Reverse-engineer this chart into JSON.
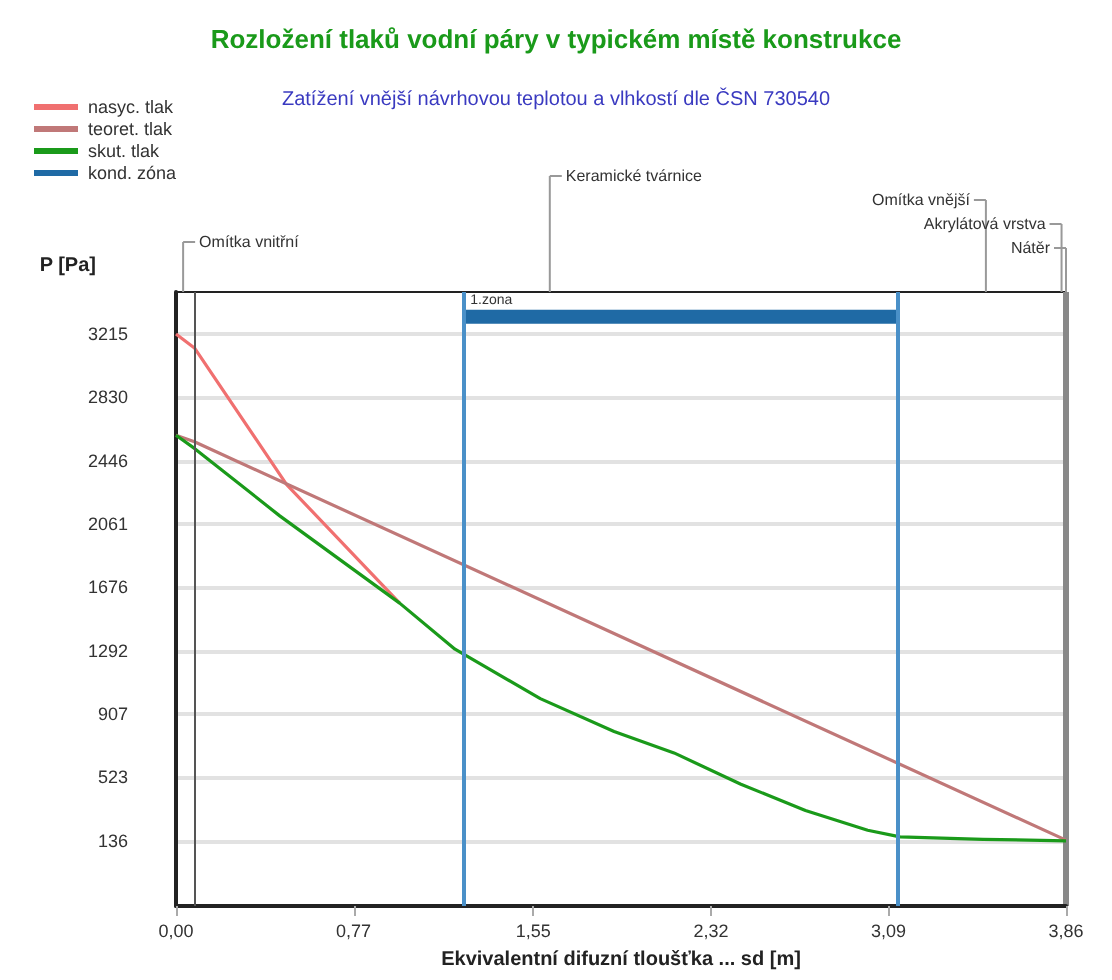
{
  "chart_data": {
    "type": "line",
    "title": "Rozložení tlaků vodní páry v typickém místě konstrukce",
    "subtitle": "Zatížení vnější návrhovou teplotou a vlhkostí dle ČSN 730540",
    "xlabel": "Ekvivalentní difuzní tloušťka ... sd [m]",
    "ylabel": "P [Pa]",
    "xlim": [
      0,
      3.86
    ],
    "xticks": [
      {
        "value": 0,
        "label": "0,00"
      },
      {
        "value": 0.77,
        "label": "0,77"
      },
      {
        "value": 1.55,
        "label": "1,55"
      },
      {
        "value": 2.32,
        "label": "2,32"
      },
      {
        "value": 3.09,
        "label": "3,09"
      },
      {
        "value": 3.86,
        "label": "3,86"
      }
    ],
    "ylim": [
      -260,
      3470
    ],
    "yticks": [
      136,
      523,
      907,
      1292,
      1676,
      2061,
      2446,
      2830,
      3215
    ],
    "grid": "y",
    "legend": "top left",
    "series": [
      {
        "name": "nasyc. tlak",
        "color": "#f07070",
        "x": [
          0,
          0.08,
          0.48,
          0.97
        ],
        "values": [
          3215,
          3130,
          2300,
          1580
        ]
      },
      {
        "name": "teoret. tlak",
        "color": "#c07878",
        "x": [
          0,
          0.08,
          3.86
        ],
        "values": [
          2600,
          2560,
          140
        ]
      },
      {
        "name": "skut. tlak",
        "color": "#1a9a1a",
        "x": [
          0,
          0.08,
          0.45,
          0.97,
          1.21,
          1.58,
          1.9,
          2.16,
          2.45,
          2.73,
          3.0,
          3.14,
          3.5,
          3.86
        ],
        "values": [
          2600,
          2520,
          2110,
          1580,
          1300,
          1000,
          800,
          670,
          480,
          320,
          200,
          160,
          145,
          136
        ]
      },
      {
        "name": "kond. zóna",
        "color": "#1f6aa5",
        "x": [
          1.25,
          3.13
        ],
        "values": [
          3320,
          3320
        ]
      }
    ],
    "ref_lines": [
      {
        "axis": "x",
        "value": 0.08,
        "color": "#555555"
      },
      {
        "axis": "x",
        "value": 1.25,
        "label": "1.zona",
        "color": "#4a90c8"
      },
      {
        "axis": "x",
        "value": 3.13,
        "color": "#4a90c8"
      }
    ],
    "annotations": [
      "Omítka vnitřní",
      "Keramické tvárnice",
      "Omítka vnější",
      "Akrylátová vrstva",
      "Nátěr"
    ]
  }
}
